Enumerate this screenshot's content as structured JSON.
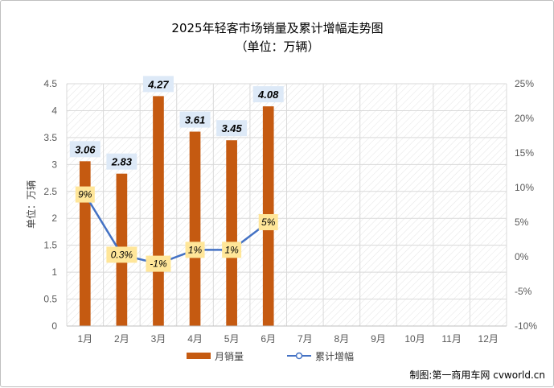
{
  "chart_data": {
    "type": "bar",
    "title": "2025年轻客市场销量及累计增幅走势图",
    "subtitle": "（单位：万辆）",
    "ylabel": "单位：万辆",
    "categories": [
      "1月",
      "2月",
      "3月",
      "4月",
      "5月",
      "6月",
      "7月",
      "8月",
      "9月",
      "10月",
      "11月",
      "12月"
    ],
    "series": [
      {
        "name": "月销量",
        "type": "bar",
        "axis": "left",
        "color": "#c55a11",
        "values": [
          3.06,
          2.83,
          4.27,
          3.61,
          3.45,
          4.08,
          null,
          null,
          null,
          null,
          null,
          null
        ],
        "labels": [
          "3.06",
          "2.83",
          "4.27",
          "3.61",
          "3.45",
          "4.08"
        ]
      },
      {
        "name": "累计增幅",
        "type": "line",
        "axis": "right",
        "color": "#4472c4",
        "values": [
          9,
          0.3,
          -1,
          1,
          1,
          5,
          null,
          null,
          null,
          null,
          null,
          null
        ],
        "labels": [
          "9%",
          "0.3%",
          "-1%",
          "1%",
          "1%",
          "5%"
        ]
      }
    ],
    "ylim": [
      0,
      4.5
    ],
    "yticks": [
      "0",
      "0.5",
      "1",
      "1.5",
      "2",
      "2.5",
      "3",
      "3.5",
      "4",
      "4.5"
    ],
    "y2lim": [
      -10,
      25
    ],
    "y2ticks": [
      "-10%",
      "-5%",
      "0%",
      "5%",
      "10%",
      "15%",
      "20%",
      "25%"
    ],
    "legend": "bottom",
    "grid": true
  },
  "credit": "制图:第一商用车网 cvworld.cn",
  "colors": {
    "bar_label_bg": "#dde9f7",
    "line_label_bg": "#ffe699",
    "grid": "#d9d9d9"
  }
}
